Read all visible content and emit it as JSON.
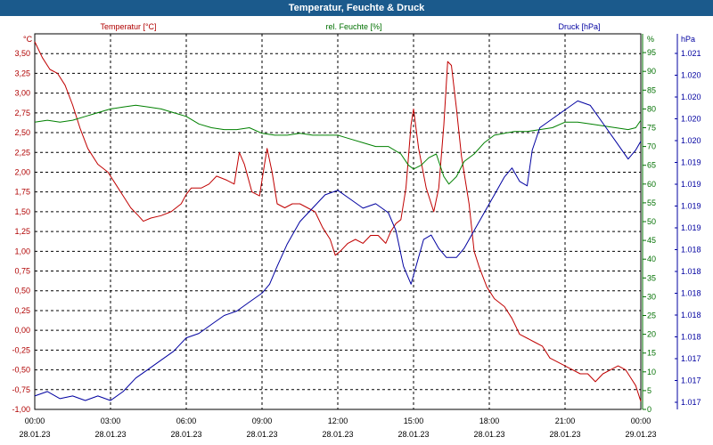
{
  "window": {
    "title": "Temperatur, Feuchte & Druck"
  },
  "chart_data": {
    "type": "line",
    "title": "Temperatur, Feuchte & Druck",
    "grid": true,
    "x_ticks": [
      {
        "time": "00:00",
        "date": "28.01.23",
        "h": 0
      },
      {
        "time": "03:00",
        "date": "28.01.23",
        "h": 3
      },
      {
        "time": "06:00",
        "date": "28.01.23",
        "h": 6
      },
      {
        "time": "09:00",
        "date": "28.01.23",
        "h": 9
      },
      {
        "time": "12:00",
        "date": "28.01.23",
        "h": 12
      },
      {
        "time": "15:00",
        "date": "28.01.23",
        "h": 15
      },
      {
        "time": "18:00",
        "date": "28.01.23",
        "h": 18
      },
      {
        "time": "21:00",
        "date": "28.01.23",
        "h": 21
      },
      {
        "time": "00:00",
        "date": "29.01.23",
        "h": 24
      }
    ],
    "x_range_hours": [
      0,
      24
    ],
    "axes": {
      "temperature": {
        "label": "Temperatur [°C]",
        "unit": "°C",
        "color": "#b00000",
        "range": [
          -1.0,
          3.75
        ],
        "ticks": [
          "3,50",
          "3,25",
          "3,00",
          "2,75",
          "2,50",
          "2,25",
          "2,00",
          "1,75",
          "1,50",
          "1,25",
          "1,00",
          "0,75",
          "0,50",
          "0,25",
          "0,00",
          "-0,25",
          "-0,50",
          "-0,75",
          "-1,00"
        ]
      },
      "humidity": {
        "label": "rel. Feuchte [%]",
        "unit": "%",
        "color": "#007000",
        "range": [
          0,
          100
        ],
        "ticks": [
          "95",
          "90",
          "85",
          "80",
          "75",
          "70",
          "65",
          "60",
          "55",
          "50",
          "45",
          "40",
          "35",
          "30",
          "25",
          "20",
          "15",
          "10",
          "5",
          "0"
        ]
      },
      "pressure": {
        "label": "Druck [hPa]",
        "unit": "hPa",
        "color": "#0000a0",
        "range": [
          1016.9,
          1021.1
        ],
        "ticks": [
          "1.021",
          "1.020",
          "1.020",
          "1.020",
          "1.020",
          "1.019",
          "1.019",
          "1.019",
          "1.019",
          "1.018",
          "1.018",
          "1.018",
          "1.018",
          "1.018",
          "1.017",
          "1.017",
          "1.017"
        ]
      }
    },
    "series": [
      {
        "name": "Temperatur [°C]",
        "axis": "temperature",
        "color": "#c00000",
        "points": [
          [
            0,
            3.65
          ],
          [
            0.3,
            3.45
          ],
          [
            0.6,
            3.3
          ],
          [
            0.9,
            3.25
          ],
          [
            1.2,
            3.1
          ],
          [
            1.5,
            2.85
          ],
          [
            1.8,
            2.55
          ],
          [
            2.1,
            2.3
          ],
          [
            2.5,
            2.1
          ],
          [
            2.9,
            2.0
          ],
          [
            3.2,
            1.85
          ],
          [
            3.5,
            1.7
          ],
          [
            3.8,
            1.55
          ],
          [
            4.1,
            1.45
          ],
          [
            4.3,
            1.38
          ],
          [
            4.6,
            1.42
          ],
          [
            5.0,
            1.45
          ],
          [
            5.4,
            1.5
          ],
          [
            5.8,
            1.6
          ],
          [
            6.0,
            1.72
          ],
          [
            6.2,
            1.8
          ],
          [
            6.6,
            1.8
          ],
          [
            6.9,
            1.85
          ],
          [
            7.2,
            1.95
          ],
          [
            7.6,
            1.9
          ],
          [
            7.9,
            1.85
          ],
          [
            8.1,
            2.25
          ],
          [
            8.3,
            2.1
          ],
          [
            8.6,
            1.75
          ],
          [
            8.9,
            1.7
          ],
          [
            9.1,
            2.1
          ],
          [
            9.2,
            2.3
          ],
          [
            9.4,
            2.0
          ],
          [
            9.6,
            1.6
          ],
          [
            9.9,
            1.55
          ],
          [
            10.2,
            1.6
          ],
          [
            10.5,
            1.6
          ],
          [
            10.8,
            1.55
          ],
          [
            11.1,
            1.5
          ],
          [
            11.4,
            1.3
          ],
          [
            11.7,
            1.15
          ],
          [
            11.9,
            0.95
          ],
          [
            12.1,
            1.0
          ],
          [
            12.4,
            1.1
          ],
          [
            12.7,
            1.15
          ],
          [
            13.0,
            1.1
          ],
          [
            13.3,
            1.2
          ],
          [
            13.6,
            1.2
          ],
          [
            13.9,
            1.1
          ],
          [
            14.1,
            1.25
          ],
          [
            14.3,
            1.35
          ],
          [
            14.5,
            1.4
          ],
          [
            14.7,
            1.8
          ],
          [
            14.9,
            2.6
          ],
          [
            15.0,
            2.8
          ],
          [
            15.2,
            2.3
          ],
          [
            15.5,
            1.8
          ],
          [
            15.8,
            1.5
          ],
          [
            16.0,
            1.8
          ],
          [
            16.2,
            2.6
          ],
          [
            16.35,
            3.4
          ],
          [
            16.5,
            3.35
          ],
          [
            16.7,
            2.8
          ],
          [
            16.9,
            2.2
          ],
          [
            17.2,
            1.6
          ],
          [
            17.4,
            1.0
          ],
          [
            17.6,
            0.8
          ],
          [
            17.9,
            0.55
          ],
          [
            18.2,
            0.4
          ],
          [
            18.6,
            0.3
          ],
          [
            18.9,
            0.15
          ],
          [
            19.2,
            -0.05
          ],
          [
            19.5,
            -0.1
          ],
          [
            19.8,
            -0.15
          ],
          [
            20.1,
            -0.2
          ],
          [
            20.4,
            -0.35
          ],
          [
            20.7,
            -0.4
          ],
          [
            21.0,
            -0.45
          ],
          [
            21.3,
            -0.5
          ],
          [
            21.6,
            -0.55
          ],
          [
            21.9,
            -0.55
          ],
          [
            22.2,
            -0.65
          ],
          [
            22.5,
            -0.55
          ],
          [
            22.8,
            -0.5
          ],
          [
            23.1,
            -0.45
          ],
          [
            23.4,
            -0.5
          ],
          [
            23.6,
            -0.6
          ],
          [
            23.8,
            -0.7
          ],
          [
            24.0,
            -0.9
          ]
        ]
      },
      {
        "name": "rel. Feuchte [%]",
        "axis": "humidity",
        "color": "#008000",
        "points": [
          [
            0,
            76.5
          ],
          [
            0.5,
            77
          ],
          [
            1.0,
            76.5
          ],
          [
            1.5,
            77
          ],
          [
            2.0,
            78
          ],
          [
            2.5,
            79
          ],
          [
            3.0,
            80
          ],
          [
            3.5,
            80.5
          ],
          [
            4.0,
            81
          ],
          [
            4.5,
            80.5
          ],
          [
            5.0,
            80
          ],
          [
            5.5,
            79
          ],
          [
            6.0,
            78
          ],
          [
            6.5,
            76
          ],
          [
            7.0,
            75
          ],
          [
            7.5,
            74.5
          ],
          [
            8.0,
            74.5
          ],
          [
            8.5,
            75
          ],
          [
            9.0,
            73.5
          ],
          [
            9.5,
            73
          ],
          [
            10.0,
            73
          ],
          [
            10.5,
            73.5
          ],
          [
            11.0,
            73
          ],
          [
            11.5,
            73
          ],
          [
            12.0,
            73
          ],
          [
            12.5,
            72
          ],
          [
            13.0,
            71
          ],
          [
            13.5,
            70
          ],
          [
            14.0,
            70
          ],
          [
            14.5,
            68
          ],
          [
            14.8,
            65
          ],
          [
            15.0,
            64
          ],
          [
            15.3,
            65
          ],
          [
            15.6,
            67
          ],
          [
            15.9,
            68
          ],
          [
            16.2,
            62
          ],
          [
            16.4,
            60
          ],
          [
            16.7,
            62
          ],
          [
            17.0,
            66
          ],
          [
            17.4,
            68
          ],
          [
            17.8,
            71
          ],
          [
            18.2,
            73
          ],
          [
            18.6,
            73.5
          ],
          [
            19.0,
            74
          ],
          [
            19.5,
            74
          ],
          [
            20.0,
            74.5
          ],
          [
            20.5,
            75
          ],
          [
            21.0,
            76.5
          ],
          [
            21.5,
            76.5
          ],
          [
            22.0,
            76
          ],
          [
            22.5,
            75.5
          ],
          [
            23.0,
            75
          ],
          [
            23.5,
            74.5
          ],
          [
            23.8,
            75
          ],
          [
            24.0,
            77
          ]
        ]
      },
      {
        "name": "Druck [hPa]",
        "axis": "pressure",
        "color": "#0000a0",
        "points": [
          [
            0,
            1017.05
          ],
          [
            0.5,
            1017.1
          ],
          [
            1.0,
            1017.02
          ],
          [
            1.5,
            1017.05
          ],
          [
            2.0,
            1017.0
          ],
          [
            2.5,
            1017.05
          ],
          [
            3.0,
            1017.0
          ],
          [
            3.5,
            1017.1
          ],
          [
            4.0,
            1017.25
          ],
          [
            4.5,
            1017.35
          ],
          [
            5.0,
            1017.45
          ],
          [
            5.5,
            1017.55
          ],
          [
            6.0,
            1017.7
          ],
          [
            6.5,
            1017.75
          ],
          [
            7.0,
            1017.85
          ],
          [
            7.5,
            1017.95
          ],
          [
            8.0,
            1018.0
          ],
          [
            8.5,
            1018.1
          ],
          [
            9.0,
            1018.2
          ],
          [
            9.3,
            1018.3
          ],
          [
            9.6,
            1018.5
          ],
          [
            10.0,
            1018.75
          ],
          [
            10.5,
            1019.0
          ],
          [
            11.0,
            1019.15
          ],
          [
            11.5,
            1019.3
          ],
          [
            12.0,
            1019.35
          ],
          [
            12.5,
            1019.25
          ],
          [
            13.0,
            1019.15
          ],
          [
            13.5,
            1019.2
          ],
          [
            14.0,
            1019.1
          ],
          [
            14.3,
            1018.9
          ],
          [
            14.6,
            1018.5
          ],
          [
            14.9,
            1018.3
          ],
          [
            15.1,
            1018.5
          ],
          [
            15.4,
            1018.8
          ],
          [
            15.7,
            1018.85
          ],
          [
            16.0,
            1018.7
          ],
          [
            16.3,
            1018.6
          ],
          [
            16.7,
            1018.6
          ],
          [
            17.0,
            1018.7
          ],
          [
            17.4,
            1018.9
          ],
          [
            17.8,
            1019.1
          ],
          [
            18.2,
            1019.3
          ],
          [
            18.6,
            1019.5
          ],
          [
            18.9,
            1019.6
          ],
          [
            19.2,
            1019.45
          ],
          [
            19.5,
            1019.4
          ],
          [
            19.7,
            1019.8
          ],
          [
            20.0,
            1020.05
          ],
          [
            20.5,
            1020.15
          ],
          [
            21.0,
            1020.25
          ],
          [
            21.5,
            1020.35
          ],
          [
            22.0,
            1020.3
          ],
          [
            22.5,
            1020.1
          ],
          [
            23.0,
            1019.9
          ],
          [
            23.5,
            1019.7
          ],
          [
            23.8,
            1019.8
          ],
          [
            24.0,
            1019.9
          ]
        ]
      }
    ]
  }
}
